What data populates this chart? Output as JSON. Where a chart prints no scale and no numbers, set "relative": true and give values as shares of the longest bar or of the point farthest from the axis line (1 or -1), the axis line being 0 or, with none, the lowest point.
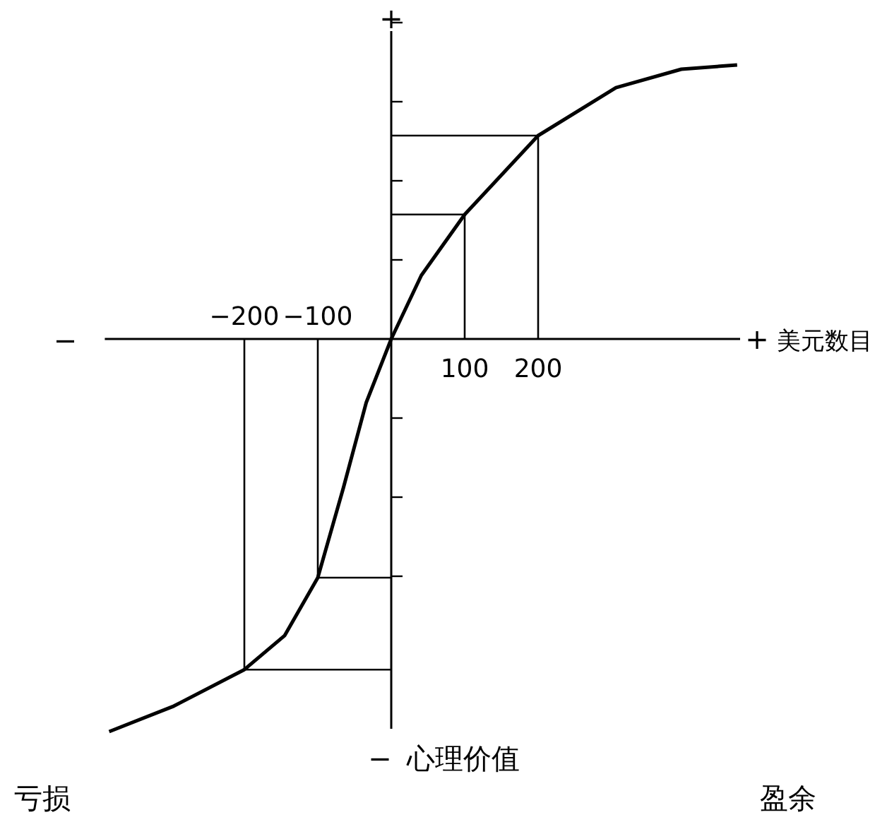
{
  "chart_data": {
    "type": "line",
    "relative": true,
    "xlabel": "美元数目",
    "xlim": [
      -390,
      475
    ],
    "xticks": [
      -200,
      -100
    ],
    "series": [
      {
        "color": "#000000",
        "x": [
          -384,
          -296,
          -200,
          -145,
          -100,
          -65,
          -34,
          0,
          41,
          100,
          200,
          306,
          395,
          471
        ],
        "values": [
          -1,
          -0.935,
          -0.842,
          -0.755,
          -0.608,
          -0.378,
          -0.162,
          0,
          0.162,
          0.317,
          0.518,
          0.64,
          0.687,
          0.698
        ]
      },
      {
        "color": "#000000",
        "x": [
          0,
          100,
          100
        ],
        "values": [
          0.317,
          0.317,
          0
        ]
      },
      {
        "color": "#000000",
        "x": [
          0,
          200,
          200
        ],
        "values": [
          0.518,
          0.518,
          0
        ]
      },
      {
        "color": "#000000",
        "x": [
          0,
          -100,
          -100
        ],
        "values": [
          -0.608,
          -0.608,
          0
        ]
      },
      {
        "color": "#000000",
        "x": [
          0,
          -200,
          -200
        ],
        "values": [
          -0.842,
          -0.842,
          0
        ]
      }
    ],
    "annotations": [
      "−",
      "+",
      "+",
      "−",
      "心理价值",
      "亏损",
      "盈余",
      {
        "text": "100",
        "x": 100,
        "y": 0
      },
      {
        "text": "200",
        "x": 200,
        "y": 0
      }
    ],
    "marker": "none",
    "line_style": "solid",
    "grid": false,
    "legend": false
  }
}
